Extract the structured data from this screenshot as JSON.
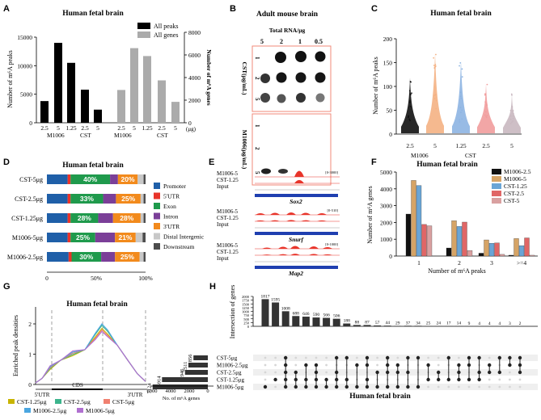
{
  "panel_letters": [
    "A",
    "B",
    "C",
    "D",
    "E",
    "F",
    "G",
    "H"
  ],
  "colors": {
    "black": "#000000",
    "gray": "#ababab",
    "promoter": "#1f5fa8",
    "utr5": "#e8342a",
    "exon": "#1f9a4c",
    "intron": "#7b3f98",
    "utr3": "#f28a1c",
    "distal": "#c8c8c8",
    "downstream": "#4d4d4d",
    "m1006_25": "#111111",
    "m1006_5": "#d6a466",
    "cst125": "#6aa5d6",
    "cst25": "#e06666",
    "cst5": "#d9a0a0",
    "violin_black": "#111111",
    "violin_orange": "#f4b183",
    "violin_blue": "#8db4e2",
    "violin_red": "#f19c9c",
    "violin_gray": "#c9b8c0"
  },
  "panelA": {
    "chart_data": {
      "type": "bar",
      "title": "Human fetal  brain",
      "ylabel_left": "Number of m⁶A peaks",
      "ylabel_right": "Number of m⁶A genes",
      "y_left_ticks": [
        "0",
        "5000",
        "10000",
        "15000"
      ],
      "y_right_ticks": [
        "0",
        "2000",
        "4000",
        "6000",
        "8000"
      ],
      "ylim_left": [
        0,
        15000
      ],
      "ylim_right": [
        0,
        8000
      ],
      "legend": [
        "All peaks",
        "All genes"
      ],
      "unit": "(μg)",
      "peaks": {
        "categories": [
          "2.5",
          "5",
          "1.25",
          "2.5",
          "5"
        ],
        "values": [
          3800,
          14000,
          10500,
          5800,
          2300
        ]
      },
      "genes": {
        "categories": [
          "2.5",
          "5",
          "1.25",
          "2.5",
          "5"
        ],
        "values": [
          2900,
          6600,
          5900,
          3750,
          1850
        ]
      },
      "groups": [
        "M1006",
        "CST",
        "M1006",
        "CST"
      ]
    }
  },
  "panelB": {
    "title": "Adult mouse brain",
    "subtitle": "Total RNA/μg",
    "concentrations": [
      "5",
      "2",
      "1",
      "0.5"
    ],
    "row_labels": [
      "1",
      "2",
      "5"
    ],
    "row_labels_bottom": [
      "1",
      "2",
      "5"
    ],
    "group_top": "CST(μg/mL)",
    "group_bottom": "M1006(μg/mL)"
  },
  "panelC": {
    "chart_data": {
      "type": "scatter",
      "title": "Human fetal  brain",
      "ylabel": "Number of m⁶A peaks",
      "y_ticks": [
        "0",
        "50",
        "100",
        "150",
        "200"
      ],
      "ylim": [
        0,
        200
      ],
      "categories": [
        "2.5",
        "5",
        "1.25",
        "2.5",
        "5"
      ],
      "groups": [
        "M1006",
        "CST"
      ],
      "max_values": [
        118,
        168,
        153,
        105,
        85
      ],
      "median_values": [
        12,
        14,
        13,
        11,
        10
      ]
    }
  },
  "panelD": {
    "chart_data": {
      "type": "bar",
      "title": "Human fetal  brain",
      "categories": [
        "CST-5μg",
        "CST-2.5μg",
        "CST-1.25μg",
        "M1006-5μg",
        "M1006-2.5μg"
      ],
      "x_ticks": [
        "0",
        "50%",
        "100%"
      ],
      "segment_names": [
        "Promoter",
        "5'UTR",
        "Exon",
        "Intron",
        "3'UTR",
        "Distal Intergenic",
        "Downstream"
      ],
      "series": [
        [
          21,
          3,
          40,
          8,
          20,
          6,
          2
        ],
        [
          21,
          3,
          33,
          13,
          25,
          3,
          2
        ],
        [
          21,
          3,
          28,
          15,
          28,
          3,
          2
        ],
        [
          21,
          3,
          25,
          20,
          21,
          7,
          3
        ],
        [
          22,
          3,
          30,
          14,
          25,
          4,
          2
        ]
      ],
      "labels": [
        {
          "exon": "40%",
          "utr3": "20%"
        },
        {
          "exon": "33%",
          "utr3": "25%"
        },
        {
          "exon": "28%",
          "utr3": "28%"
        },
        {
          "exon": "25%",
          "utr3": "21%"
        },
        {
          "exon": "30%",
          "utr3": "25%"
        }
      ]
    }
  },
  "panelE": {
    "tracks": [
      {
        "samples": [
          "M1006-5",
          "CST-1.25",
          "Input"
        ],
        "range": "[0-3000]",
        "gene": "Sox2"
      },
      {
        "samples": [
          "M1006-5",
          "CST-1.25",
          "Input"
        ],
        "range": "[0-510]",
        "gene": "Snurf"
      },
      {
        "samples": [
          "M1006-5",
          "CST-1.25",
          "Input"
        ],
        "range": "[0-1000]",
        "gene": "Map2"
      }
    ]
  },
  "panelF": {
    "chart_data": {
      "type": "bar",
      "title": "Human fetal  brain",
      "ylabel": "Number of m⁶A genes",
      "xlabel": "Number of m⁶A peaks",
      "y_ticks": [
        "0",
        "1000",
        "2000",
        "3000",
        "4000",
        "5000"
      ],
      "ylim": [
        0,
        5000
      ],
      "categories": [
        "1",
        "2",
        "3",
        ">=4"
      ],
      "series": [
        {
          "name": "M1006-2.5",
          "values": [
            2500,
            480,
            170,
            50
          ]
        },
        {
          "name": "M1006-5",
          "values": [
            4500,
            2100,
            960,
            1040
          ]
        },
        {
          "name": "CST-1.25",
          "values": [
            4200,
            1760,
            760,
            620
          ]
        },
        {
          "name": "CST-2.5",
          "values": [
            1880,
            2020,
            780,
            1080
          ]
        },
        {
          "name": "CST-5",
          "values": [
            1800,
            330,
            100,
            50
          ]
        }
      ]
    }
  },
  "panelG": {
    "chart_data": {
      "type": "line",
      "title": "Human fetal  brain",
      "ylabel": "Enriched peak densities",
      "y_ticks": [
        "0",
        "1",
        "2"
      ],
      "ylim": [
        0,
        2.4
      ],
      "x_regions": [
        "5'UTR",
        "CDS",
        "3'UTR"
      ],
      "series": [
        {
          "name": "CST-1.25μg",
          "peak": 1.85
        },
        {
          "name": "CST-2.5μg",
          "peak": 1.95
        },
        {
          "name": "CST-5μg",
          "peak": 1.8
        },
        {
          "name": "M1006-2.5μg",
          "peak": 2.0
        },
        {
          "name": "M1006-5μg",
          "peak": 1.75
        }
      ]
    }
  },
  "panelH": {
    "chart_data": {
      "type": "bar",
      "title": "Human fetal  brain",
      "ylabel": "Intersection of genes",
      "y_ticks": [
        "0",
        "250",
        "500",
        "750",
        "1000",
        "1250",
        "1500",
        "1750",
        "2000"
      ],
      "ylim": [
        0,
        2000
      ],
      "intersections": [
        1817,
        1595,
        1008,
        688,
        646,
        590,
        566,
        506,
        188,
        88,
        87,
        57,
        44,
        29,
        37,
        34,
        25,
        24,
        17,
        14,
        9,
        4,
        4,
        4,
        3,
        2
      ],
      "set_names": [
        "CST-5μg",
        "M1006-2.5μg",
        "CST-2.5μg",
        "CST-1.25μg",
        "M1006-5μg"
      ],
      "set_sizes": [
        1856,
        2511,
        2946,
        5914,
        7124
      ],
      "set_xlabel": "No. of m⁶A genes",
      "set_xticks": [
        "6000",
        "4000",
        "2000",
        "0"
      ]
    }
  }
}
